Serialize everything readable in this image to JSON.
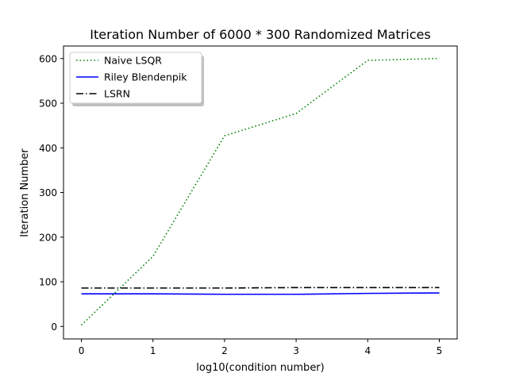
{
  "chart_data": {
    "type": "line",
    "title": "Iteration Number of 6000 * 300 Randomized Matrices",
    "xlabel": "log10(condition number)",
    "ylabel": "Iteration Number",
    "xlim": [
      -0.25,
      5.25
    ],
    "ylim": [
      -28,
      628
    ],
    "xticks": [
      0,
      1,
      2,
      3,
      4,
      5
    ],
    "yticks": [
      0,
      100,
      200,
      300,
      400,
      500,
      600
    ],
    "grid": false,
    "legend": {
      "position": "top-left",
      "shadow": true
    },
    "x": [
      0,
      1,
      2,
      3,
      4,
      5
    ],
    "series": [
      {
        "name": "Naive LSQR",
        "values": [
          3,
          157,
          427,
          477,
          596,
          600
        ],
        "color": "#008000",
        "style": "dotted"
      },
      {
        "name": "Riley Blendenpik",
        "values": [
          73,
          73,
          72,
          72,
          74,
          75
        ],
        "color": "#0000ff",
        "style": "solid"
      },
      {
        "name": "LSRN",
        "values": [
          86,
          86,
          86,
          87,
          87,
          87
        ],
        "color": "#000000",
        "style": "dashdot"
      }
    ]
  }
}
